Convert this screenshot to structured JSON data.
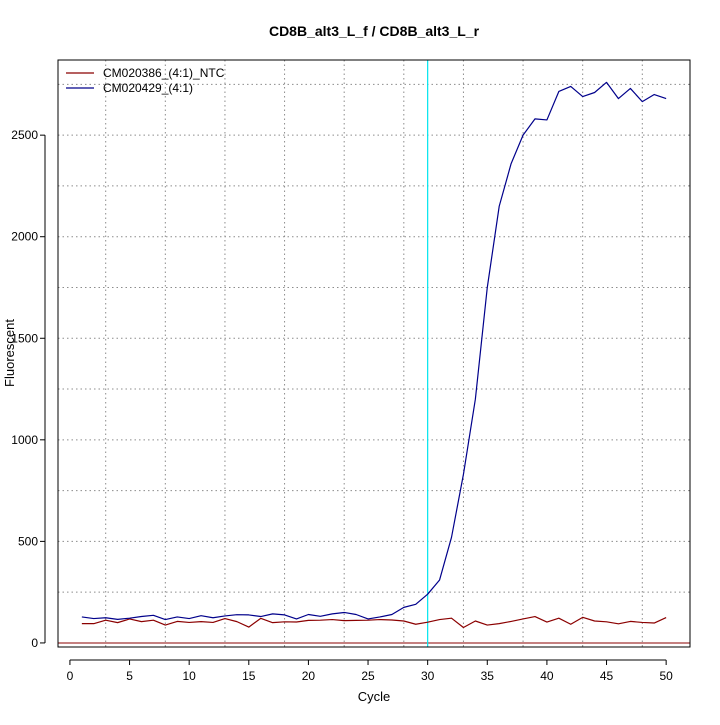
{
  "chart_data": {
    "type": "line",
    "title": "CD8B_alt3_L_f / CD8B_alt3_L_r",
    "xlabel": "Cycle",
    "ylabel": "Fluorescent",
    "xlim": [
      -1,
      52
    ],
    "ylim": [
      -20,
      2870
    ],
    "x_ticks": [
      0,
      5,
      10,
      15,
      20,
      25,
      30,
      35,
      40,
      45,
      50
    ],
    "y_ticks": [
      0,
      500,
      1000,
      1500,
      2000,
      2500
    ],
    "x_grid": [
      3,
      8,
      13,
      18,
      23,
      28,
      33,
      38,
      43,
      48
    ],
    "y_grid": [
      0,
      250,
      500,
      750,
      1000,
      1250,
      1500,
      1750,
      2000,
      2250,
      2500,
      2750
    ],
    "grid": true,
    "legend_position": "top-left",
    "threshold_line": {
      "x": 30,
      "color": "#00e5ee"
    },
    "baseline": {
      "y": 0,
      "color": "#8b0000"
    },
    "x": [
      1,
      2,
      3,
      4,
      5,
      6,
      7,
      8,
      9,
      10,
      11,
      12,
      13,
      14,
      15,
      16,
      17,
      18,
      19,
      20,
      21,
      22,
      23,
      24,
      25,
      26,
      27,
      28,
      29,
      30,
      31,
      32,
      33,
      34,
      35,
      36,
      37,
      38,
      39,
      40,
      41,
      42,
      43,
      44,
      45,
      46,
      47,
      48,
      49,
      50
    ],
    "series": [
      {
        "name": "CM020386_(4:1)_NTC",
        "color": "#8b0000",
        "values": [
          95,
          95,
          112,
          100,
          118,
          105,
          112,
          88,
          106,
          101,
          105,
          101,
          120,
          105,
          78,
          121,
          100,
          104,
          103,
          111,
          112,
          115,
          110,
          111,
          112,
          115,
          113,
          108,
          92,
          102,
          115,
          122,
          76,
          108,
          88,
          95,
          106,
          118,
          130,
          103,
          122,
          92,
          126,
          108,
          104,
          94,
          106,
          101,
          98,
          125
        ]
      },
      {
        "name": "CM020429_(4:1)",
        "color": "#00008b",
        "values": [
          128,
          120,
          124,
          116,
          122,
          130,
          136,
          115,
          128,
          120,
          134,
          124,
          133,
          139,
          138,
          130,
          143,
          138,
          118,
          140,
          131,
          143,
          150,
          140,
          118,
          128,
          140,
          175,
          190,
          240,
          310,
          520,
          830,
          1200,
          1750,
          2150,
          2360,
          2500,
          2580,
          2575,
          2715,
          2740,
          2690,
          2710,
          2760,
          2680,
          2730,
          2665,
          2700,
          2680
        ]
      }
    ]
  }
}
